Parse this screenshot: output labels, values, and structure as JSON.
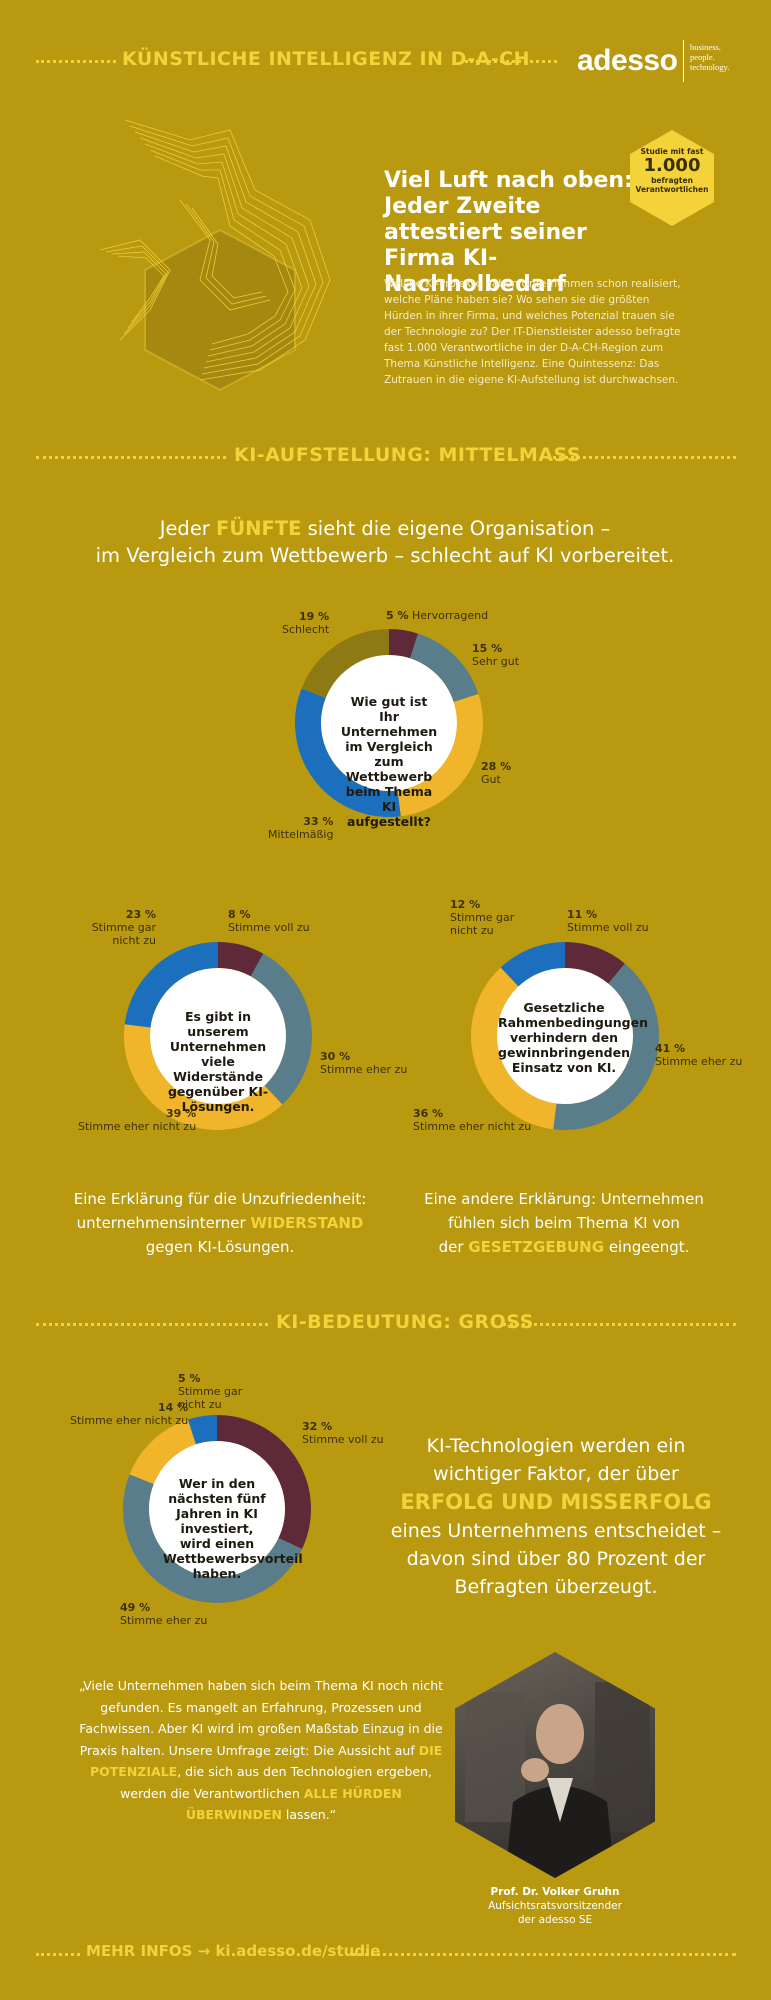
{
  "header": {
    "title": "KÜNSTLICHE INTELLIGENZ IN D-A-CH",
    "logo": "adesso",
    "tagline": [
      "business.",
      "people.",
      "technology."
    ]
  },
  "intro": {
    "headline": "Viel Luft nach oben: Jeder Zweite attestiert seiner Firma KI-Nachholbedarf",
    "badge": {
      "prefix": "Studie mit fast",
      "number": "1.000",
      "suffix": "befragten Verantwortlichen"
    },
    "text": "Welche KI-Projekte haben Unternehmen schon realisiert, welche Pläne haben sie? Wo sehen sie die größten Hürden in ihrer Firma, und welches Potenzial trauen sie der Technologie zu? Der IT-Dienstleister adesso befragte fast 1.000 Verantwortliche in der D-A-CH-Region zum Thema Künstliche Intelligenz. Eine Quintessenz: Das Zutrauen in die eigene KI-Aufstellung ist durchwachsen."
  },
  "section1": {
    "title": "KI-AUFSTELLUNG: MITTELMASS",
    "lead": {
      "a": "Jeder ",
      "highlight": "FÜNFTE",
      "b": " sieht die eigene Organisation –",
      "c": "im Vergleich zum Wettbewerb – schlecht auf KI vorbereitet."
    }
  },
  "explanations": {
    "left": {
      "a": "Eine Erklärung für die Unzufriedenheit:",
      "b": "unternehmensinterner ",
      "highlight": "WIDERSTAND",
      "c": "gegen KI-Lösungen."
    },
    "right": {
      "a": "Eine andere Erklärung: Unternehmen",
      "b": "fühlen sich beim Thema KI von",
      "c": "der ",
      "highlight": "GESETZGEBUNG",
      "d": " eingeengt."
    }
  },
  "section2": {
    "title": "KI-BEDEUTUNG: GROSS",
    "bigtext": {
      "a": "KI-Technologien werden ein",
      "b": "wichtiger Faktor, der über",
      "highlight": "ERFOLG UND MISSERFOLG",
      "c": "eines Unternehmens entscheidet –",
      "d": "davon sind über 80 Prozent der",
      "e": "Befragten überzeugt."
    },
    "quote": {
      "a": "„Viele Unternehmen haben sich beim Thema KI noch nicht gefunden. Es mangelt an Erfahrung, Prozessen und Fachwissen. Aber KI wird im großen Maßstab Einzug in die Praxis halten. Unsere Umfrage zeigt: Die Aussicht auf ",
      "h1": "DIE POTENZIALE",
      "b": ", die sich aus den Technologien ergeben, werden die Verantwortlichen ",
      "h2": "ALLE HÜRDEN ÜBERWINDEN",
      "c": " lassen.“"
    },
    "caption": [
      "Prof. Dr. Volker Gruhn",
      "Aufsichtsratsvorsitzender",
      "der adesso SE"
    ]
  },
  "footer": "MEHR INFOS → ki.adesso.de/studie",
  "colors": {
    "background": "#b8990f",
    "accent": "#f4d23a",
    "maroon": "#5e2a3a",
    "steel": "#5a7d8c",
    "gold": "#f0b52a",
    "blue": "#1b6fbd",
    "olive": "#8e7a14"
  },
  "chart_data": [
    {
      "type": "pie",
      "title": "Wie gut ist Ihr Unternehmen im Vergleich zum Wettbewerb beim Thema KI aufgestellt?",
      "categories": [
        "Hervorragend",
        "Sehr gut",
        "Gut",
        "Mittelmäßig",
        "Schlecht"
      ],
      "values": [
        5,
        15,
        28,
        33,
        19
      ],
      "labels": [
        "5 %",
        "15 %",
        "28 %",
        "33 %",
        "19 %"
      ],
      "colors": [
        "#5e2a3a",
        "#5a7d8c",
        "#f0b52a",
        "#1b6fbd",
        "#8e7a14"
      ]
    },
    {
      "type": "pie",
      "title": "Es gibt in unserem Unternehmen viele Widerstände gegenüber KI-Lösungen.",
      "categories": [
        "Stimme voll zu",
        "Stimme eher zu",
        "Stimme eher nicht zu",
        "Stimme gar nicht zu"
      ],
      "values": [
        8,
        30,
        39,
        23
      ],
      "labels": [
        "8 %",
        "30 %",
        "39 %",
        "23 %"
      ],
      "colors": [
        "#5e2a3a",
        "#5a7d8c",
        "#f0b52a",
        "#1b6fbd"
      ]
    },
    {
      "type": "pie",
      "title": "Gesetzliche Rahmenbedingungen verhindern den gewinnbringenden Einsatz von KI.",
      "categories": [
        "Stimme voll zu",
        "Stimme eher zu",
        "Stimme eher nicht zu",
        "Stimme gar nicht zu"
      ],
      "values": [
        11,
        41,
        36,
        12
      ],
      "labels": [
        "11 %",
        "41 %",
        "36 %",
        "12 %"
      ],
      "colors": [
        "#5e2a3a",
        "#5a7d8c",
        "#f0b52a",
        "#1b6fbd"
      ]
    },
    {
      "type": "pie",
      "title": "Wer in den nächsten fünf Jahren in KI investiert, wird einen Wettbewerbsvorteil haben.",
      "categories": [
        "Stimme voll zu",
        "Stimme eher zu",
        "Stimme eher nicht zu",
        "Stimme gar nicht zu"
      ],
      "values": [
        32,
        49,
        14,
        5
      ],
      "labels": [
        "32 %",
        "49 %",
        "14 %",
        "5 %"
      ],
      "colors": [
        "#5e2a3a",
        "#5a7d8c",
        "#f0b52a",
        "#1b6fbd"
      ]
    }
  ]
}
